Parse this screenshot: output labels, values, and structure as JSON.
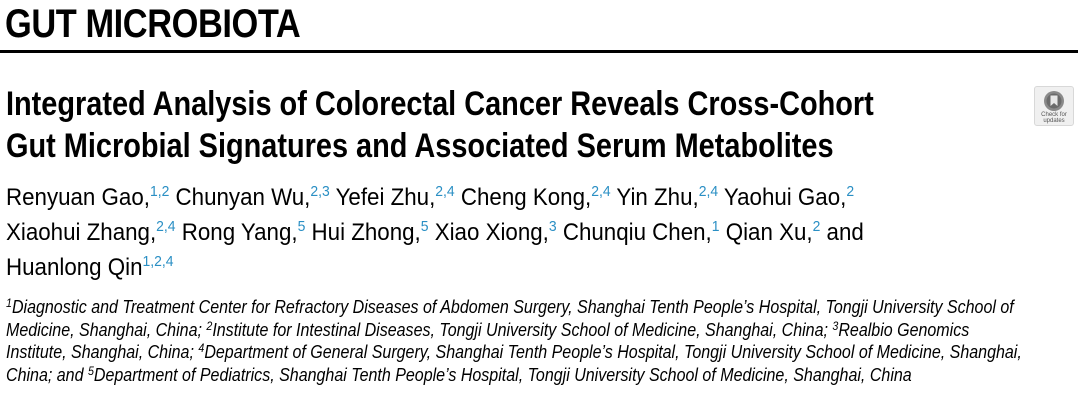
{
  "section_heading": "GUT MICROBIOTA",
  "title_lines": [
    "Integrated Analysis of Colorectal Cancer Reveals Cross-Cohort",
    "Gut Microbial Signatures and Associated Serum Metabolites"
  ],
  "badge": {
    "line1": "Check for",
    "line2": "updates",
    "icon": "crossmark-bookmark-icon"
  },
  "authors": [
    {
      "name": "Renyuan Gao,",
      "aff": "1,2"
    },
    {
      "name": "Chunyan Wu,",
      "aff": "2,3"
    },
    {
      "name": "Yefei Zhu,",
      "aff": "2,4"
    },
    {
      "name": "Cheng Kong,",
      "aff": "2,4"
    },
    {
      "name": "Yin Zhu,",
      "aff": "2,4"
    },
    {
      "name": "Yaohui Gao,",
      "aff": "2"
    },
    {
      "name": "Xiaohui Zhang,",
      "aff": "2,4"
    },
    {
      "name": "Rong Yang,",
      "aff": "5"
    },
    {
      "name": "Hui Zhong,",
      "aff": "5"
    },
    {
      "name": "Xiao Xiong,",
      "aff": "3"
    },
    {
      "name": "Chunqiu Chen,",
      "aff": "1"
    },
    {
      "name": "Qian Xu,",
      "aff": "2"
    },
    {
      "name": "and",
      "aff": ""
    },
    {
      "name": "Huanlong Qin",
      "aff": "1,2,4"
    }
  ],
  "affiliation_markers": [
    "1",
    "2",
    "3",
    "4",
    "5"
  ],
  "affiliation_texts": [
    "Diagnostic and Treatment Center for Refractory Diseases of Abdomen Surgery, Shanghai Tenth People’s Hospital, Tongji University School of Medicine, Shanghai, China; ",
    "Institute for Intestinal Diseases, Tongji University School of Medicine, Shanghai, China; ",
    "Realbio Genomics Institute, Shanghai, China; ",
    "Department of General Surgery, Shanghai Tenth People’s Hospital, Tongji University School of Medicine, Shanghai, China; and ",
    "Department of Pediatrics, Shanghai Tenth People’s Hospital, Tongji University School of Medicine, Shanghai, China"
  ],
  "colors": {
    "affiliation_superscript": "#2a8fc4",
    "text": "#000000"
  }
}
